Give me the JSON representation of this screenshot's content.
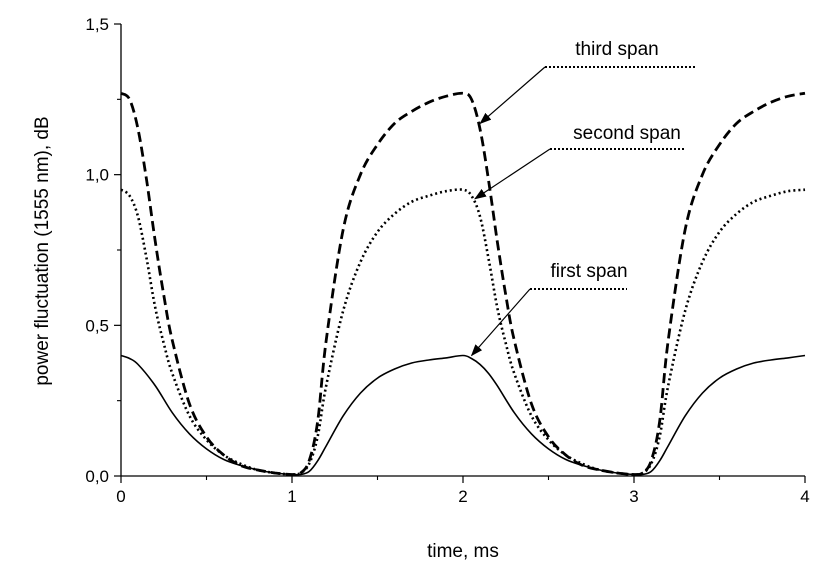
{
  "chart_data": {
    "type": "line",
    "title": "",
    "xlabel": "time, ms",
    "ylabel": "power fluctuation (1555 nm), dB",
    "xlim": [
      0,
      4
    ],
    "ylim": [
      0,
      1.5
    ],
    "x_ticks": [
      0,
      1,
      2,
      3,
      4
    ],
    "x_tick_labels": [
      "0",
      "1",
      "2",
      "3",
      "4"
    ],
    "y_ticks": [
      0,
      0.5,
      1.0,
      1.5
    ],
    "y_tick_labels": [
      "0,0",
      "0,5",
      "1,0",
      "1,5"
    ],
    "grid": false,
    "legend": "none",
    "series": [
      {
        "name": "first span",
        "style": "solid",
        "x": [
          0,
          0.05,
          0.1,
          0.2,
          0.3,
          0.4,
          0.5,
          0.6,
          0.7,
          0.8,
          0.9,
          1.0,
          1.05,
          1.1,
          1.15,
          1.2,
          1.3,
          1.4,
          1.5,
          1.6,
          1.7,
          1.8,
          1.9,
          2.0,
          2.05,
          2.1,
          2.15,
          2.2,
          2.3,
          2.4,
          2.5,
          2.6,
          2.7,
          2.8,
          2.9,
          3.0,
          3.05,
          3.1,
          3.15,
          3.2,
          3.3,
          3.4,
          3.5,
          3.6,
          3.7,
          3.8,
          3.9,
          4.0
        ],
        "y": [
          0.4,
          0.39,
          0.37,
          0.3,
          0.21,
          0.14,
          0.09,
          0.055,
          0.035,
          0.02,
          0.01,
          0.005,
          0.005,
          0.015,
          0.05,
          0.1,
          0.2,
          0.275,
          0.325,
          0.355,
          0.375,
          0.385,
          0.392,
          0.4,
          0.39,
          0.37,
          0.34,
          0.3,
          0.21,
          0.14,
          0.09,
          0.055,
          0.035,
          0.02,
          0.01,
          0.005,
          0.005,
          0.015,
          0.05,
          0.1,
          0.2,
          0.275,
          0.325,
          0.355,
          0.375,
          0.385,
          0.392,
          0.4
        ]
      },
      {
        "name": "second span",
        "style": "dotted",
        "x": [
          0,
          0.05,
          0.1,
          0.15,
          0.2,
          0.25,
          0.3,
          0.4,
          0.5,
          0.6,
          0.7,
          0.8,
          0.9,
          1.0,
          1.05,
          1.1,
          1.15,
          1.2,
          1.3,
          1.4,
          1.5,
          1.6,
          1.7,
          1.8,
          1.9,
          2.0,
          2.05,
          2.1,
          2.15,
          2.2,
          2.25,
          2.3,
          2.4,
          2.5,
          2.6,
          2.7,
          2.8,
          2.9,
          3.0,
          3.05,
          3.1,
          3.15,
          3.2,
          3.3,
          3.4,
          3.5,
          3.6,
          3.7,
          3.8,
          3.9,
          4.0
        ],
        "y": [
          0.95,
          0.93,
          0.86,
          0.72,
          0.56,
          0.44,
          0.34,
          0.2,
          0.12,
          0.07,
          0.04,
          0.02,
          0.01,
          0.005,
          0.01,
          0.04,
          0.13,
          0.3,
          0.55,
          0.71,
          0.81,
          0.87,
          0.91,
          0.93,
          0.945,
          0.95,
          0.93,
          0.86,
          0.72,
          0.56,
          0.44,
          0.34,
          0.2,
          0.12,
          0.07,
          0.04,
          0.02,
          0.01,
          0.005,
          0.01,
          0.04,
          0.13,
          0.3,
          0.55,
          0.71,
          0.81,
          0.87,
          0.91,
          0.93,
          0.945,
          0.95
        ]
      },
      {
        "name": "third span",
        "style": "dashed",
        "x": [
          0,
          0.05,
          0.1,
          0.15,
          0.2,
          0.25,
          0.3,
          0.4,
          0.5,
          0.6,
          0.7,
          0.8,
          0.9,
          1.0,
          1.05,
          1.1,
          1.15,
          1.2,
          1.3,
          1.4,
          1.5,
          1.6,
          1.7,
          1.8,
          1.9,
          2.0,
          2.05,
          2.1,
          2.15,
          2.2,
          2.25,
          2.3,
          2.4,
          2.5,
          2.6,
          2.7,
          2.8,
          2.9,
          3.0,
          3.05,
          3.1,
          3.15,
          3.2,
          3.3,
          3.4,
          3.5,
          3.6,
          3.7,
          3.8,
          3.9,
          4.0
        ],
        "y": [
          1.27,
          1.25,
          1.15,
          0.98,
          0.78,
          0.6,
          0.45,
          0.24,
          0.13,
          0.07,
          0.035,
          0.02,
          0.01,
          0.005,
          0.01,
          0.05,
          0.18,
          0.45,
          0.82,
          1.0,
          1.1,
          1.17,
          1.21,
          1.24,
          1.26,
          1.27,
          1.25,
          1.15,
          0.98,
          0.78,
          0.6,
          0.45,
          0.24,
          0.13,
          0.07,
          0.035,
          0.02,
          0.01,
          0.005,
          0.01,
          0.05,
          0.18,
          0.45,
          0.82,
          1.0,
          1.1,
          1.17,
          1.21,
          1.24,
          1.26,
          1.27
        ]
      }
    ],
    "annotations": [
      {
        "text": "third span",
        "target": [
          2.1,
          1.17
        ]
      },
      {
        "text": "second span",
        "target": [
          2.07,
          0.92
        ]
      },
      {
        "text": "first span",
        "target": [
          2.05,
          0.4
        ]
      }
    ]
  }
}
